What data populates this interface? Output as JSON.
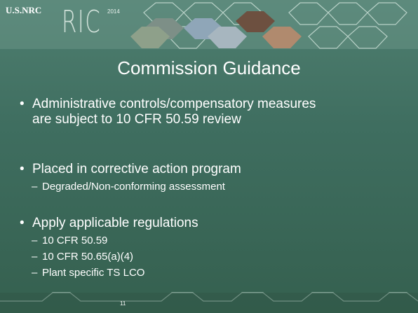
{
  "header": {
    "logo": "U.S.NRC",
    "event": "RIC",
    "year": "2014"
  },
  "slide": {
    "title": "Commission Guidance",
    "bullets": [
      {
        "lines": [
          "Administrative controls/compensatory measures",
          "are subject to 10 CFR 50.59 review"
        ]
      },
      {
        "lines": [
          "Placed in corrective action program"
        ],
        "subitems": [
          "Degraded/Non-conforming assessment"
        ]
      },
      {
        "lines": [
          "Apply applicable regulations"
        ],
        "subitems": [
          "10 CFR 50.59",
          "10 CFR 50.65(a)(4)",
          "Plant specific TS LCO"
        ]
      }
    ]
  },
  "footer": {
    "page_number": "11"
  }
}
